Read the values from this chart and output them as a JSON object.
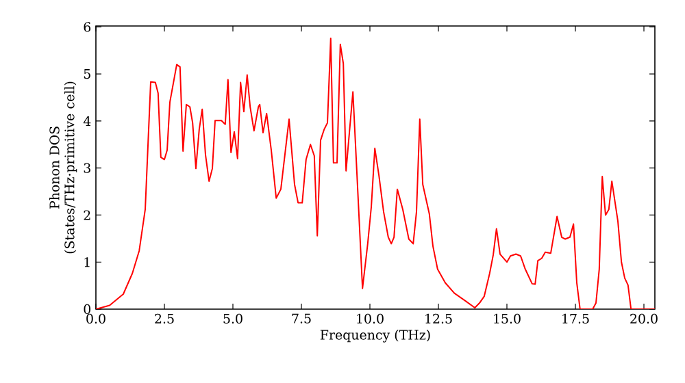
{
  "chart_data": {
    "type": "line",
    "xlabel": "Frequency (THz)",
    "ylabel": "Phonon DOS (States/THz·primitive cell)",
    "xlim": [
      0,
      20.4
    ],
    "ylim": [
      0,
      6.02
    ],
    "xticks": [
      {
        "value": 0,
        "label": "0.0"
      },
      {
        "value": 2.5,
        "label": "2.5"
      },
      {
        "value": 5,
        "label": "5.0"
      },
      {
        "value": 7.5,
        "label": "7.5"
      },
      {
        "value": 10,
        "label": "10.0"
      },
      {
        "value": 12.5,
        "label": "12.5"
      },
      {
        "value": 15,
        "label": "15.0"
      },
      {
        "value": 17.5,
        "label": "17.5"
      },
      {
        "value": 20,
        "label": "20.0"
      }
    ],
    "yticks": [
      0,
      1,
      2,
      3,
      4,
      5,
      6
    ],
    "marker": "none",
    "line_style": "solid",
    "x": [
      0,
      0.5,
      1.0,
      1.33,
      1.58,
      1.8,
      2.0,
      2.17,
      2.27,
      2.37,
      2.5,
      2.6,
      2.7,
      2.95,
      3.07,
      3.18,
      3.3,
      3.43,
      3.53,
      3.65,
      3.77,
      3.88,
      4.0,
      4.13,
      4.25,
      4.35,
      4.58,
      4.72,
      4.82,
      4.93,
      5.05,
      5.17,
      5.28,
      5.4,
      5.52,
      5.63,
      5.77,
      5.93,
      5.98,
      6.1,
      6.23,
      6.4,
      6.58,
      6.75,
      7.05,
      7.25,
      7.38,
      7.53,
      7.67,
      7.83,
      7.97,
      8.08,
      8.2,
      8.33,
      8.45,
      8.57,
      8.67,
      8.8,
      8.92,
      9.03,
      9.13,
      9.38,
      9.53,
      9.73,
      9.92,
      10.05,
      10.18,
      10.33,
      10.5,
      10.67,
      10.78,
      10.88,
      11.0,
      11.2,
      11.42,
      11.58,
      11.7,
      11.82,
      11.93,
      12.17,
      12.3,
      12.47,
      12.75,
      13.08,
      13.5,
      13.83,
      14.0,
      14.17,
      14.37,
      14.5,
      14.62,
      14.75,
      15.0,
      15.13,
      15.33,
      15.5,
      15.67,
      15.92,
      16.03,
      16.13,
      16.27,
      16.4,
      16.6,
      16.83,
      17.0,
      17.13,
      17.3,
      17.43,
      17.55,
      17.67,
      18.13,
      18.25,
      18.37,
      18.48,
      18.6,
      18.72,
      18.83,
      19.05,
      19.18,
      19.3,
      19.42,
      19.53,
      20.0,
      20.4
    ],
    "series": [
      {
        "color": "#ff0000",
        "values": [
          0,
          0.08,
          0.32,
          0.76,
          1.24,
          2.12,
          4.83,
          4.82,
          4.59,
          3.23,
          3.18,
          3.38,
          4.4,
          5.2,
          5.15,
          3.36,
          4.35,
          4.3,
          3.96,
          2.99,
          3.82,
          4.25,
          3.28,
          2.72,
          2.99,
          4.01,
          4.01,
          3.93,
          4.88,
          3.33,
          3.77,
          3.2,
          4.82,
          4.2,
          4.98,
          4.3,
          3.79,
          4.3,
          4.35,
          3.75,
          4.16,
          3.38,
          2.36,
          2.55,
          4.04,
          2.65,
          2.26,
          2.26,
          3.18,
          3.5,
          3.26,
          1.56,
          3.59,
          3.82,
          3.96,
          5.76,
          3.11,
          3.11,
          5.63,
          5.22,
          2.94,
          4.62,
          2.84,
          0.44,
          1.39,
          2.17,
          3.42,
          2.84,
          2.07,
          1.53,
          1.39,
          1.53,
          2.55,
          2.12,
          1.49,
          1.39,
          2.07,
          4.04,
          2.65,
          2.02,
          1.34,
          0.85,
          0.56,
          0.34,
          0.17,
          0.03,
          0.13,
          0.27,
          0.76,
          1.15,
          1.71,
          1.17,
          1.0,
          1.13,
          1.17,
          1.13,
          0.85,
          0.54,
          0.53,
          1.03,
          1.08,
          1.21,
          1.19,
          1.97,
          1.53,
          1.49,
          1.53,
          1.81,
          0.56,
          0,
          0,
          0.13,
          0.85,
          2.82,
          2.0,
          2.12,
          2.72,
          1.87,
          1.0,
          0.66,
          0.51,
          0,
          0,
          0
        ]
      }
    ]
  }
}
